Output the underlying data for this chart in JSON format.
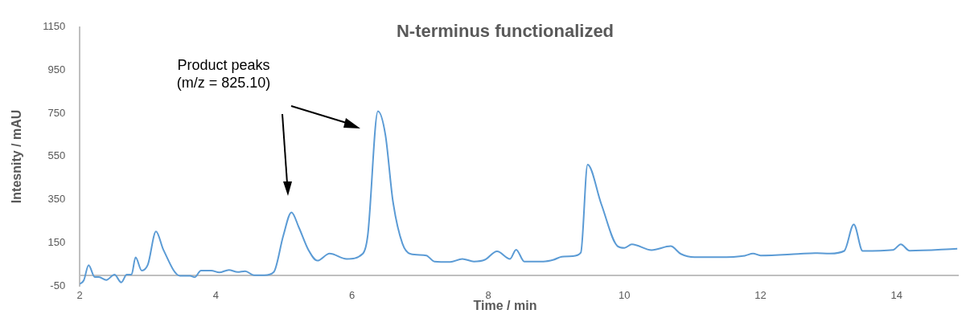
{
  "chart_data": {
    "type": "line",
    "title": "N-terminus functionalized",
    "xlabel": "Time / min",
    "ylabel": "Intesnity / mAU",
    "annotations": [
      "Product peaks (m/z = 825.10)"
    ],
    "series": [
      {
        "color": "#5b9bd5",
        "x": [
          2.0,
          2.06,
          2.13,
          2.22,
          2.28,
          2.39,
          2.51,
          2.61,
          2.69,
          2.76,
          2.82,
          2.91,
          3.0,
          3.12,
          3.23,
          3.47,
          3.62,
          3.69,
          3.78,
          3.93,
          4.05,
          4.19,
          4.32,
          4.43,
          4.56,
          4.71,
          4.85,
          4.99,
          5.11,
          5.22,
          5.36,
          5.49,
          5.67,
          5.92,
          6.16,
          6.23,
          6.38,
          6.49,
          6.6,
          6.74,
          6.86,
          7.09,
          7.21,
          7.44,
          7.62,
          7.79,
          7.95,
          8.13,
          8.32,
          8.41,
          8.53,
          8.81,
          8.96,
          9.08,
          9.24,
          9.36,
          9.46,
          9.66,
          9.9,
          10.0,
          10.11,
          10.4,
          10.68,
          10.83,
          11.03,
          11.38,
          11.77,
          11.89,
          12.0,
          12.55,
          12.8,
          13.02,
          13.23,
          13.37,
          13.5,
          13.95,
          14.06,
          14.19,
          14.89
        ],
        "values": [
          -42,
          -24,
          46,
          -9,
          -9,
          -23,
          2,
          -34,
          2,
          2,
          82,
          21,
          48,
          202,
          116,
          -3,
          -3,
          -10,
          21,
          21,
          12,
          24,
          14,
          18,
          -1,
          -1,
          14,
          183,
          291,
          220,
          116,
          67,
          100,
          75,
          100,
          183,
          760,
          650,
          343,
          146,
          98,
          91,
          63,
          61,
          75,
          63,
          71,
          110,
          75,
          118,
          63,
          63,
          71,
          85,
          88,
          104,
          512,
          330,
          134,
          126,
          143,
          116,
          134,
          98,
          83,
          83,
          90,
          100,
          91,
          98,
          102,
          100,
          112,
          235,
          112,
          117,
          143,
          113,
          122
        ]
      }
    ],
    "xlim": [
      2,
      14.9
    ],
    "xticks": [
      2,
      4,
      6,
      8,
      10,
      12,
      14
    ],
    "ylim": [
      -50,
      1150
    ],
    "yticks": [
      -50,
      150,
      350,
      550,
      750,
      950,
      1150
    ],
    "grid": false,
    "legend": false,
    "marker": "none",
    "line_style": "solid"
  }
}
